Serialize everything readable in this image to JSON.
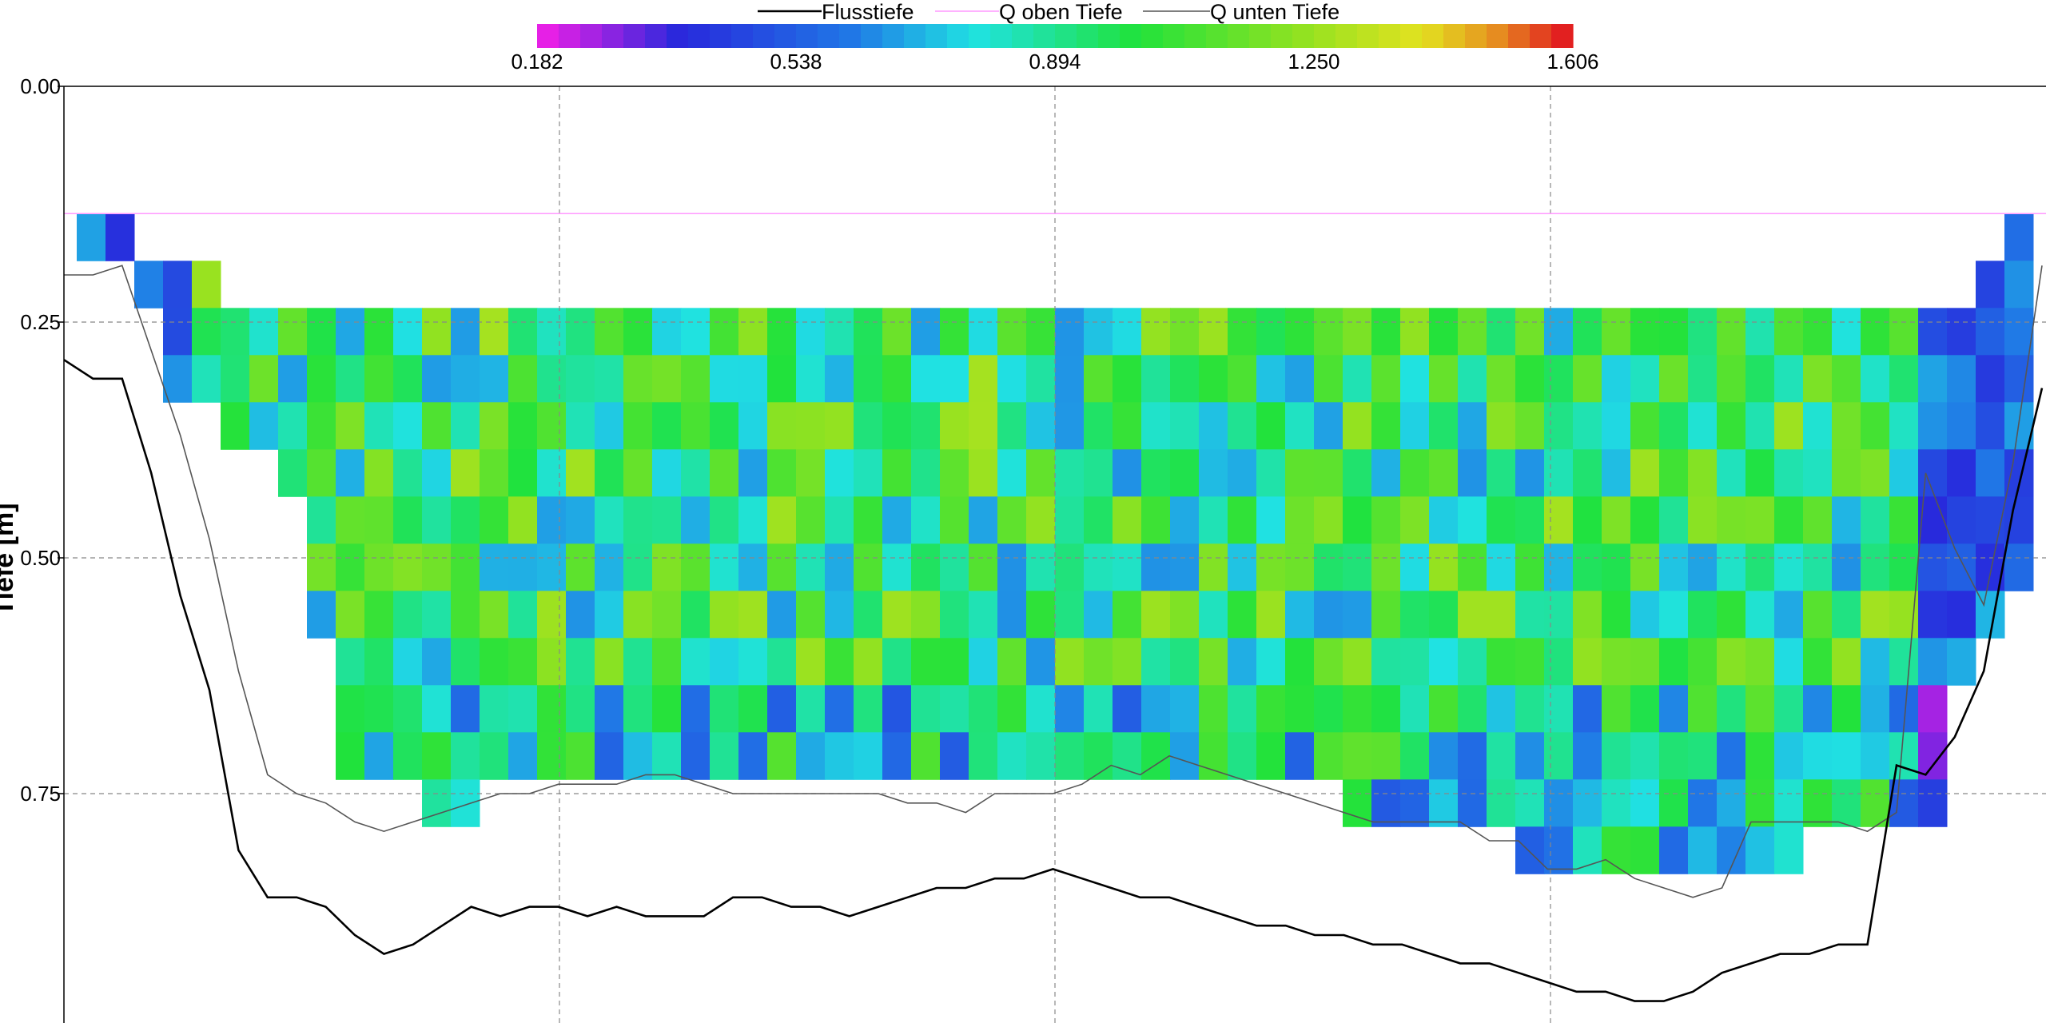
{
  "chart_data": {
    "type": "heatmap",
    "ylabel": "Tiefe [m]",
    "yticks": [
      "0.00",
      "0.25",
      "0.50",
      "0.75"
    ],
    "y_range": [
      0,
      1.0
    ],
    "grid": true,
    "legend_position": "top-center",
    "legend": [
      {
        "name": "Flusstiefe",
        "color": "#000000"
      },
      {
        "name": "Q oben Tiefe",
        "color": "#ff99ff"
      },
      {
        "name": "Q unten Tiefe",
        "color": "#555555"
      }
    ],
    "colorbar": {
      "min": 0.182,
      "max": 1.606,
      "ticks": [
        "0.182",
        "0.538",
        "0.894",
        "1.250",
        "1.606"
      ]
    },
    "q_oben_tiefe": 0.135,
    "bin": {
      "n_cols": 68,
      "n_rows": 14,
      "top": 0.135,
      "height": 0.05
    },
    "col_top_row": [
      0,
      0,
      1,
      1,
      1,
      2,
      2,
      2,
      2,
      2,
      2,
      2,
      2,
      2,
      2,
      2,
      2,
      2,
      2,
      2,
      2,
      2,
      2,
      2,
      2,
      2,
      2,
      2,
      2,
      2,
      2,
      2,
      2,
      2,
      2,
      2,
      2,
      2,
      2,
      2,
      2,
      2,
      2,
      2,
      2,
      2,
      2,
      2,
      2,
      2,
      2,
      2,
      2,
      2,
      2,
      2,
      2,
      2,
      2,
      2,
      2,
      2,
      2,
      2,
      2,
      2,
      1,
      0
    ],
    "col_bottom_row": [
      0,
      0,
      1,
      3,
      3,
      4,
      4,
      5,
      8,
      11,
      11,
      11,
      12,
      12,
      11,
      11,
      11,
      11,
      11,
      11,
      11,
      11,
      11,
      11,
      11,
      11,
      11,
      11,
      11,
      11,
      11,
      11,
      11,
      11,
      11,
      11,
      11,
      11,
      11,
      11,
      11,
      11,
      11,
      11,
      12,
      12,
      12,
      12,
      12,
      12,
      13,
      13,
      13,
      13,
      13,
      13,
      13,
      13,
      13,
      13,
      12,
      12,
      12,
      12,
      12,
      9,
      8,
      7
    ],
    "flusstiefe": [
      [
        0,
        0.29
      ],
      [
        1,
        0.31
      ],
      [
        2,
        0.31
      ],
      [
        3,
        0.41
      ],
      [
        4,
        0.54
      ],
      [
        5,
        0.64
      ],
      [
        6,
        0.81
      ],
      [
        7,
        0.86
      ],
      [
        8,
        0.86
      ],
      [
        9,
        0.87
      ],
      [
        10,
        0.9
      ],
      [
        11,
        0.92
      ],
      [
        12,
        0.91
      ],
      [
        13,
        0.89
      ],
      [
        14,
        0.87
      ],
      [
        15,
        0.88
      ],
      [
        16,
        0.87
      ],
      [
        17,
        0.87
      ],
      [
        18,
        0.88
      ],
      [
        19,
        0.87
      ],
      [
        20,
        0.88
      ],
      [
        21,
        0.88
      ],
      [
        22,
        0.88
      ],
      [
        23,
        0.86
      ],
      [
        24,
        0.86
      ],
      [
        25,
        0.87
      ],
      [
        26,
        0.87
      ],
      [
        27,
        0.88
      ],
      [
        28,
        0.87
      ],
      [
        29,
        0.86
      ],
      [
        30,
        0.85
      ],
      [
        31,
        0.85
      ],
      [
        32,
        0.84
      ],
      [
        33,
        0.84
      ],
      [
        34,
        0.83
      ],
      [
        35,
        0.84
      ],
      [
        36,
        0.85
      ],
      [
        37,
        0.86
      ],
      [
        38,
        0.86
      ],
      [
        39,
        0.87
      ],
      [
        40,
        0.88
      ],
      [
        41,
        0.89
      ],
      [
        42,
        0.89
      ],
      [
        43,
        0.9
      ],
      [
        44,
        0.9
      ],
      [
        45,
        0.91
      ],
      [
        46,
        0.91
      ],
      [
        47,
        0.92
      ],
      [
        48,
        0.93
      ],
      [
        49,
        0.93
      ],
      [
        50,
        0.94
      ],
      [
        51,
        0.95
      ],
      [
        52,
        0.96
      ],
      [
        53,
        0.96
      ],
      [
        54,
        0.97
      ],
      [
        55,
        0.97
      ],
      [
        56,
        0.96
      ],
      [
        57,
        0.94
      ],
      [
        58,
        0.93
      ],
      [
        59,
        0.92
      ],
      [
        60,
        0.92
      ],
      [
        61,
        0.91
      ],
      [
        62,
        0.91
      ],
      [
        63,
        0.72
      ],
      [
        64,
        0.73
      ],
      [
        65,
        0.69
      ],
      [
        66,
        0.62
      ],
      [
        67,
        0.45
      ],
      [
        68,
        0.32
      ]
    ],
    "q_unten_tiefe": [
      [
        0,
        0.2
      ],
      [
        1,
        0.2
      ],
      [
        2,
        0.19
      ],
      [
        3,
        0.28
      ],
      [
        4,
        0.37
      ],
      [
        5,
        0.48
      ],
      [
        6,
        0.62
      ],
      [
        7,
        0.73
      ],
      [
        8,
        0.75
      ],
      [
        9,
        0.76
      ],
      [
        10,
        0.78
      ],
      [
        11,
        0.79
      ],
      [
        12,
        0.78
      ],
      [
        13,
        0.77
      ],
      [
        14,
        0.76
      ],
      [
        15,
        0.75
      ],
      [
        16,
        0.75
      ],
      [
        17,
        0.74
      ],
      [
        18,
        0.74
      ],
      [
        19,
        0.74
      ],
      [
        20,
        0.73
      ],
      [
        21,
        0.73
      ],
      [
        22,
        0.74
      ],
      [
        23,
        0.75
      ],
      [
        24,
        0.75
      ],
      [
        25,
        0.75
      ],
      [
        26,
        0.75
      ],
      [
        27,
        0.75
      ],
      [
        28,
        0.75
      ],
      [
        29,
        0.76
      ],
      [
        30,
        0.76
      ],
      [
        31,
        0.77
      ],
      [
        32,
        0.75
      ],
      [
        33,
        0.75
      ],
      [
        34,
        0.75
      ],
      [
        35,
        0.74
      ],
      [
        36,
        0.72
      ],
      [
        37,
        0.73
      ],
      [
        38,
        0.71
      ],
      [
        39,
        0.72
      ],
      [
        40,
        0.73
      ],
      [
        41,
        0.74
      ],
      [
        42,
        0.75
      ],
      [
        43,
        0.76
      ],
      [
        44,
        0.77
      ],
      [
        45,
        0.78
      ],
      [
        46,
        0.78
      ],
      [
        47,
        0.78
      ],
      [
        48,
        0.78
      ],
      [
        49,
        0.8
      ],
      [
        50,
        0.8
      ],
      [
        51,
        0.83
      ],
      [
        52,
        0.83
      ],
      [
        53,
        0.82
      ],
      [
        54,
        0.84
      ],
      [
        55,
        0.85
      ],
      [
        56,
        0.86
      ],
      [
        57,
        0.85
      ],
      [
        58,
        0.78
      ],
      [
        59,
        0.78
      ],
      [
        60,
        0.78
      ],
      [
        61,
        0.78
      ],
      [
        62,
        0.79
      ],
      [
        63,
        0.77
      ],
      [
        64,
        0.41
      ],
      [
        65,
        0.49
      ],
      [
        66,
        0.55
      ],
      [
        67,
        0.4
      ],
      [
        68,
        0.19
      ]
    ]
  }
}
